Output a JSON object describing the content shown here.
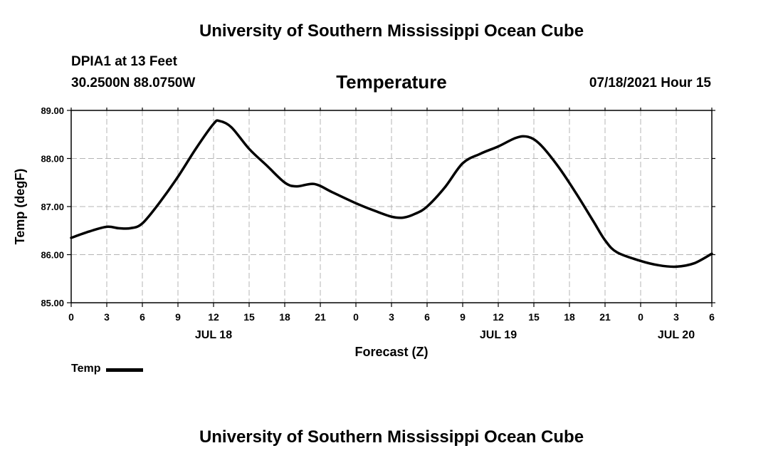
{
  "header": {
    "title": "University of Southern Mississippi Ocean Cube",
    "station": "DPIA1 at 13 Feet",
    "coordinates": "30.2500N  88.0750W",
    "chart_title": "Temperature",
    "run_time": "07/18/2021 Hour 15"
  },
  "footer": {
    "title": "University of Southern Mississippi Ocean Cube"
  },
  "chart_data": {
    "type": "line",
    "title": "Temperature",
    "xlabel": "Forecast (Z)",
    "ylabel": "Temp (degF)",
    "ylim": [
      85,
      89
    ],
    "xlim": [
      0,
      54
    ],
    "grid": true,
    "legend_position": "bottom-left",
    "yticks": [
      85,
      86,
      87,
      88,
      89
    ],
    "ytick_labels": [
      "85.00",
      "86.00",
      "87.00",
      "88.00",
      "89.00"
    ],
    "xticks": [
      0,
      3,
      6,
      9,
      12,
      15,
      18,
      21,
      24,
      27,
      30,
      33,
      36,
      39,
      42,
      45,
      48,
      51,
      54
    ],
    "xtick_labels": [
      "0",
      "3",
      "6",
      "9",
      "12",
      "15",
      "18",
      "21",
      "0",
      "3",
      "6",
      "9",
      "12",
      "15",
      "18",
      "21",
      "0",
      "3",
      "6"
    ],
    "date_labels": [
      {
        "x": 12,
        "label": "JUL 18"
      },
      {
        "x": 36,
        "label": "JUL 19"
      },
      {
        "x": 51,
        "label": "JUL 20"
      }
    ],
    "series": [
      {
        "name": "Temp",
        "color": "#000000",
        "x": [
          0,
          1.5,
          3,
          4,
          5,
          6,
          7.5,
          9,
          10.5,
          12,
          12.5,
          13.5,
          15,
          16.5,
          18,
          19,
          20.5,
          22,
          24,
          25.5,
          27,
          28,
          29,
          30,
          31.5,
          33,
          34.5,
          36,
          37.5,
          38.5,
          39.5,
          41,
          42.5,
          44,
          45,
          46,
          48,
          49.5,
          51,
          52.5,
          54
        ],
        "values": [
          86.35,
          86.48,
          86.58,
          86.55,
          86.55,
          86.65,
          87.1,
          87.62,
          88.2,
          88.72,
          88.78,
          88.65,
          88.2,
          87.85,
          87.5,
          87.42,
          87.47,
          87.3,
          87.07,
          86.92,
          86.79,
          86.77,
          86.85,
          87.0,
          87.4,
          87.9,
          88.1,
          88.25,
          88.43,
          88.45,
          88.3,
          87.85,
          87.3,
          86.7,
          86.3,
          86.05,
          85.87,
          85.78,
          85.75,
          85.82,
          86.02
        ]
      }
    ]
  }
}
